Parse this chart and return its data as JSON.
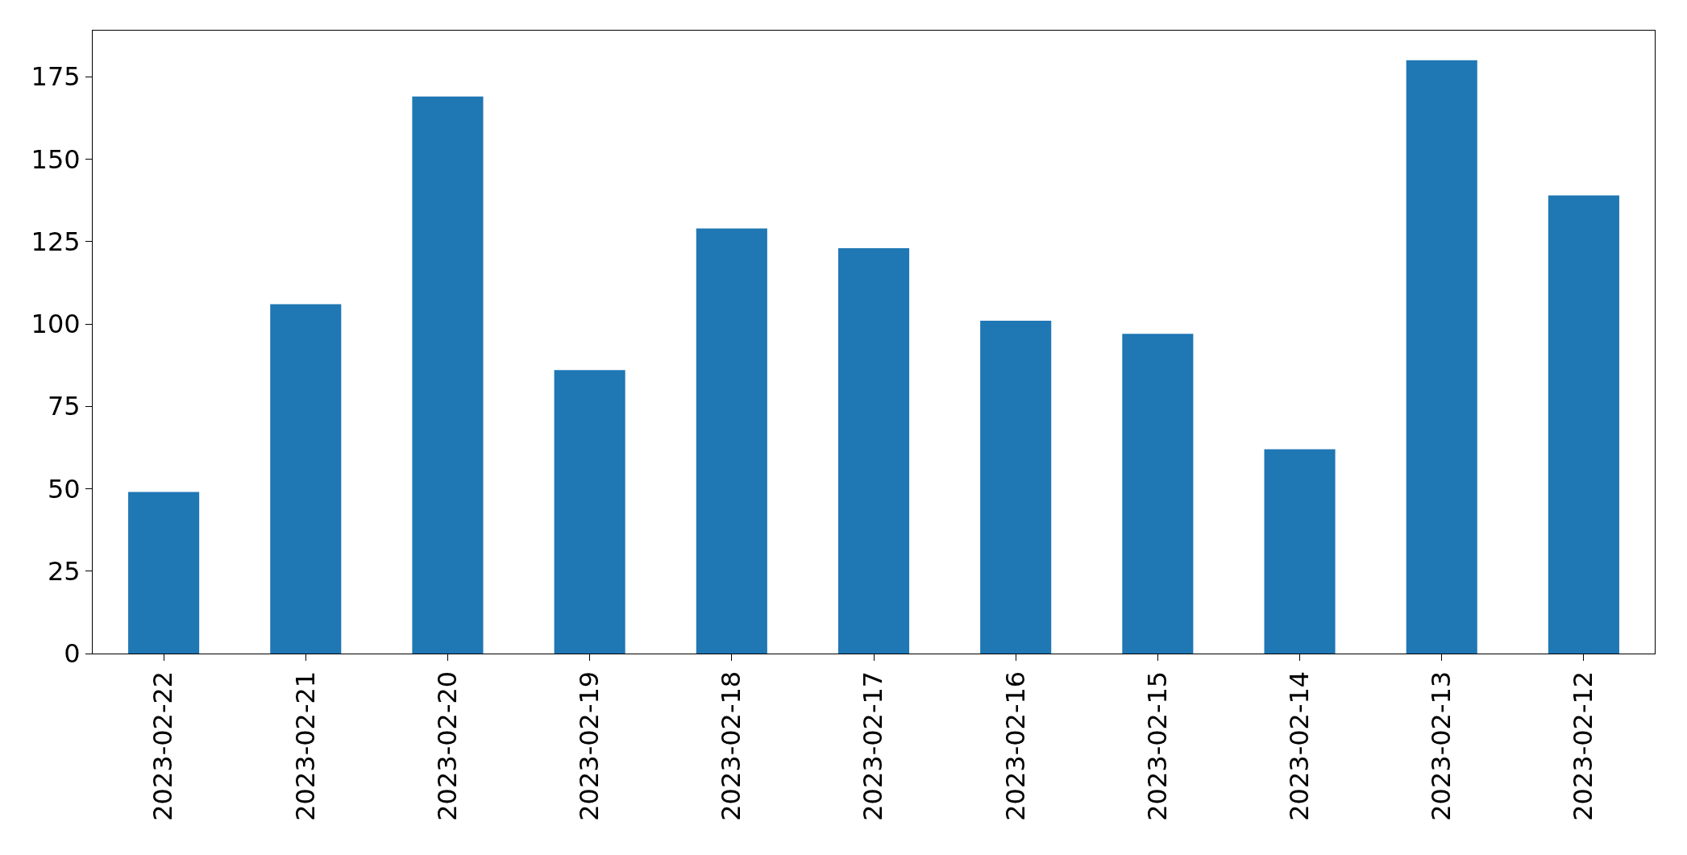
{
  "chart_data": {
    "type": "bar",
    "categories": [
      "2023-02-22",
      "2023-02-21",
      "2023-02-20",
      "2023-02-19",
      "2023-02-18",
      "2023-02-17",
      "2023-02-16",
      "2023-02-15",
      "2023-02-14",
      "2023-02-13",
      "2023-02-12"
    ],
    "values": [
      49,
      106,
      169,
      86,
      129,
      123,
      101,
      97,
      62,
      180,
      139
    ],
    "color": "#1f77b4",
    "ylim": [
      0,
      189
    ],
    "yticks": [
      0,
      25,
      50,
      75,
      100,
      125,
      150,
      175
    ]
  }
}
